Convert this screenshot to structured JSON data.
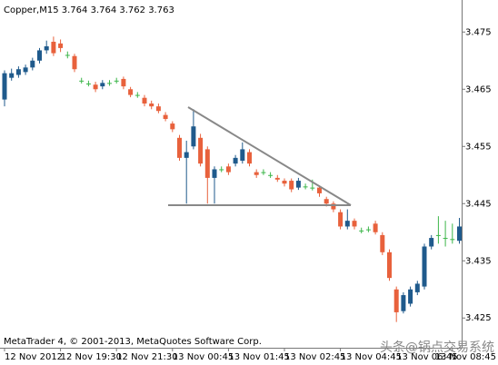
{
  "chart_data": {
    "type": "candlestick",
    "title": "Copper,M15  3.764 3.764 3.762 3.763",
    "footer": "MetaTrader 4, © 2001-2013, MetaQuotes Software Corp.",
    "watermark": "头条@锅点交易系统",
    "categories": [
      "12 Nov 2012",
      null,
      null,
      null,
      null,
      null,
      null,
      null,
      "12 Nov 19:30",
      null,
      null,
      null,
      null,
      null,
      null,
      null,
      "12 Nov 21:30",
      null,
      null,
      null,
      null,
      null,
      null,
      null,
      "13 Nov 00:45",
      null,
      null,
      null,
      null,
      null,
      null,
      null,
      "13 Nov 01:45",
      null,
      null,
      null,
      null,
      null,
      null,
      null,
      "13 Nov 02:45",
      null,
      null,
      null,
      null,
      null,
      null,
      null,
      "13 Nov 04:45",
      null,
      null,
      null,
      null,
      null,
      null,
      null,
      "13 Nov 06:45",
      null,
      null,
      null,
      null,
      null,
      null,
      null,
      "13 Nov 08:45",
      null
    ],
    "open": [
      3.4632,
      3.467,
      3.4675,
      3.468,
      3.4688,
      3.47,
      3.4718,
      3.4733,
      3.473,
      3.471,
      3.4708,
      3.4665,
      3.466,
      3.4658,
      3.4655,
      3.4661,
      3.4665,
      3.4668,
      3.465,
      3.464,
      3.4635,
      3.4625,
      3.462,
      3.4605,
      3.459,
      3.4565,
      3.453,
      3.455,
      3.4565,
      3.4545,
      3.4495,
      3.451,
      3.4515,
      3.452,
      3.4525,
      3.454,
      3.4505,
      3.4505,
      3.45,
      3.4495,
      3.449,
      3.449,
      3.4478,
      3.448,
      3.4478,
      3.4478,
      3.4458,
      3.445,
      3.4435,
      3.441,
      3.442,
      3.4403,
      3.4405,
      3.4415,
      3.4395,
      3.4365,
      3.43,
      3.4262,
      3.4275,
      3.4295,
      3.4305,
      3.4375,
      3.4395,
      3.439,
      3.4388,
      3.4385
    ],
    "high": [
      3.4683,
      3.4686,
      3.469,
      3.4693,
      3.4705,
      3.4722,
      3.4735,
      3.4742,
      3.4737,
      3.4716,
      3.4712,
      3.467,
      3.4665,
      3.4663,
      3.4666,
      3.4666,
      3.467,
      3.4672,
      3.4654,
      3.4645,
      3.464,
      3.463,
      3.4625,
      3.461,
      3.4594,
      3.457,
      3.456,
      3.4615,
      3.4572,
      3.455,
      3.4515,
      3.4515,
      3.452,
      3.4535,
      3.4557,
      3.4545,
      3.451,
      3.451,
      3.4505,
      3.45,
      3.4494,
      3.4494,
      3.4495,
      3.4485,
      3.4492,
      3.4482,
      3.4462,
      3.4454,
      3.444,
      3.444,
      3.4424,
      3.4408,
      3.441,
      3.442,
      3.44,
      3.437,
      3.4305,
      3.4295,
      3.4305,
      3.4315,
      3.438,
      3.4395,
      3.4428,
      3.442,
      3.4415,
      3.4425
    ],
    "low": [
      3.462,
      3.4665,
      3.467,
      3.4675,
      3.4683,
      3.4695,
      3.4712,
      3.4708,
      3.4715,
      3.4704,
      3.468,
      3.466,
      3.4655,
      3.4645,
      3.465,
      3.4656,
      3.466,
      3.465,
      3.4636,
      3.4635,
      3.462,
      3.4615,
      3.4608,
      3.4594,
      3.4575,
      3.4525,
      3.445,
      3.4545,
      3.4515,
      3.445,
      3.445,
      3.4505,
      3.45,
      3.4515,
      3.452,
      3.4515,
      3.4495,
      3.45,
      3.4495,
      3.4488,
      3.448,
      3.447,
      3.4474,
      3.4475,
      3.4473,
      3.4462,
      3.4445,
      3.4435,
      3.4405,
      3.4405,
      3.4405,
      3.4398,
      3.44,
      3.4396,
      3.436,
      3.4315,
      3.4243,
      3.4258,
      3.427,
      3.429,
      3.43,
      3.437,
      3.438,
      3.4375,
      3.438,
      3.438
    ],
    "close": [
      3.4678,
      3.4678,
      3.4685,
      3.4688,
      3.47,
      3.4718,
      3.4725,
      3.4713,
      3.4722,
      3.471,
      3.4685,
      3.4665,
      3.466,
      3.465,
      3.4661,
      3.4661,
      3.4665,
      3.4655,
      3.464,
      3.464,
      3.4625,
      3.462,
      3.4612,
      3.4598,
      3.458,
      3.453,
      3.454,
      3.4585,
      3.452,
      3.4495,
      3.451,
      3.451,
      3.4505,
      3.453,
      3.4545,
      3.452,
      3.45,
      3.4505,
      3.45,
      3.4492,
      3.4485,
      3.4475,
      3.449,
      3.448,
      3.4478,
      3.4468,
      3.445,
      3.444,
      3.441,
      3.442,
      3.441,
      3.4403,
      3.4405,
      3.44,
      3.4365,
      3.432,
      3.426,
      3.429,
      3.43,
      3.431,
      3.4375,
      3.439,
      3.4395,
      3.439,
      3.4388,
      3.441
    ],
    "up_color": "#1f5a8c",
    "down_color": "#e8613c",
    "doji_color": "#3cb64a",
    "ylim": [
      3.4198,
      3.4806
    ],
    "yticks": [
      3.475,
      3.465,
      3.455,
      3.445,
      3.435,
      3.425
    ]
  }
}
